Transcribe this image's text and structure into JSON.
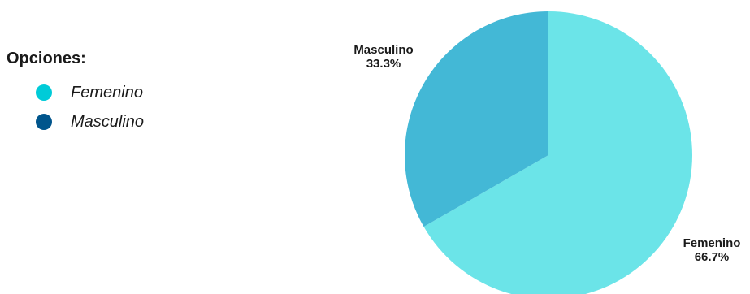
{
  "legend": {
    "title": "Opciones:"
  },
  "chart_data": {
    "type": "pie",
    "title": "",
    "slices": [
      {
        "label": "Femenino",
        "value": 66.7,
        "value_label": "66.7%",
        "color": "#6be4e8",
        "legend_color": "#00cbd8"
      },
      {
        "label": "Masculino",
        "value": 33.3,
        "value_label": "33.3%",
        "color": "#43b8d6",
        "legend_color": "#00558c"
      }
    ],
    "start": "12 o'clock",
    "direction": "clockwise",
    "legend_position": "left"
  }
}
